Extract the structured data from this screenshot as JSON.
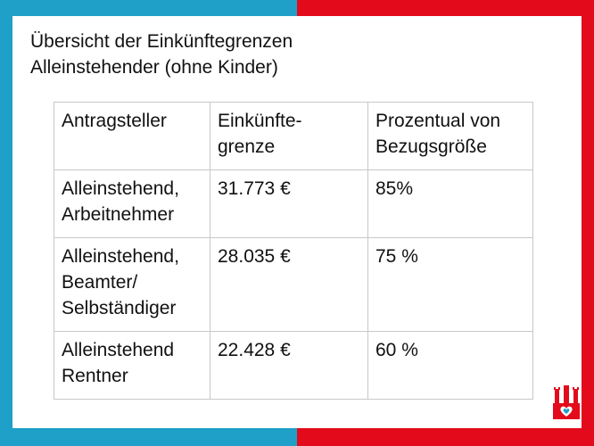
{
  "title": {
    "line1": "Übersicht der Einkünftegrenzen",
    "line2": "Alleinstehender (ohne Kinder)"
  },
  "table": {
    "headers": [
      "Antragsteller",
      "Einkünfte-\ngrenze",
      "Prozentual von\nBezugsgröße"
    ],
    "rows": [
      [
        "Alleinstehend,\nArbeitnehmer",
        "31.773 €",
        "85%"
      ],
      [
        "Alleinstehend,\nBeamter/\nSelbständiger",
        "28.035 €",
        "75 %"
      ],
      [
        "Alleinstehend\nRentner",
        "22.428 €",
        "60 %"
      ]
    ]
  },
  "colors": {
    "left_band": "#1ea0c8",
    "right_band": "#e30a1b",
    "logo": "#e30a1b"
  },
  "icons": {
    "logo": "hamburg-castle-heart-logo"
  }
}
